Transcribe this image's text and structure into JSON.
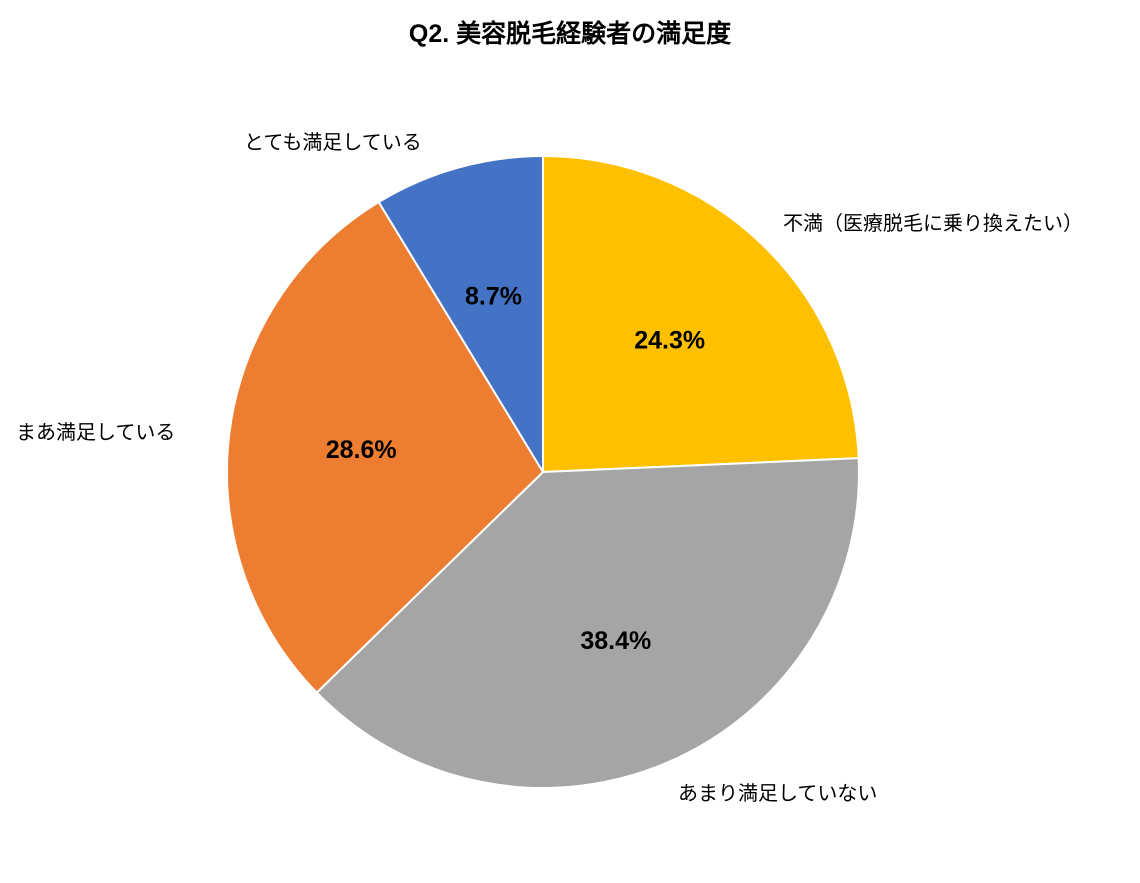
{
  "chart_data": {
    "type": "pie",
    "title": "Q2. 美容脱毛経験者の満足度",
    "start_angle_deg": 0,
    "direction": "clockwise",
    "legend_position": "none",
    "label_style": "outside category labels, inside bold percent data labels",
    "total": 100.0,
    "slices": [
      {
        "label": "不満（医療脱毛に乗り換えたい）",
        "value": 24.3,
        "display": "24.3%",
        "color": "#FFC000"
      },
      {
        "label": "あまり満足していない",
        "value": 38.4,
        "display": "38.4%",
        "color": "#A5A5A5"
      },
      {
        "label": "まあ満足している",
        "value": 28.6,
        "display": "28.6%",
        "color": "#ED7D31"
      },
      {
        "label": "とても満足している",
        "value": 8.7,
        "display": "8.7%",
        "color": "#4472C4"
      }
    ]
  }
}
